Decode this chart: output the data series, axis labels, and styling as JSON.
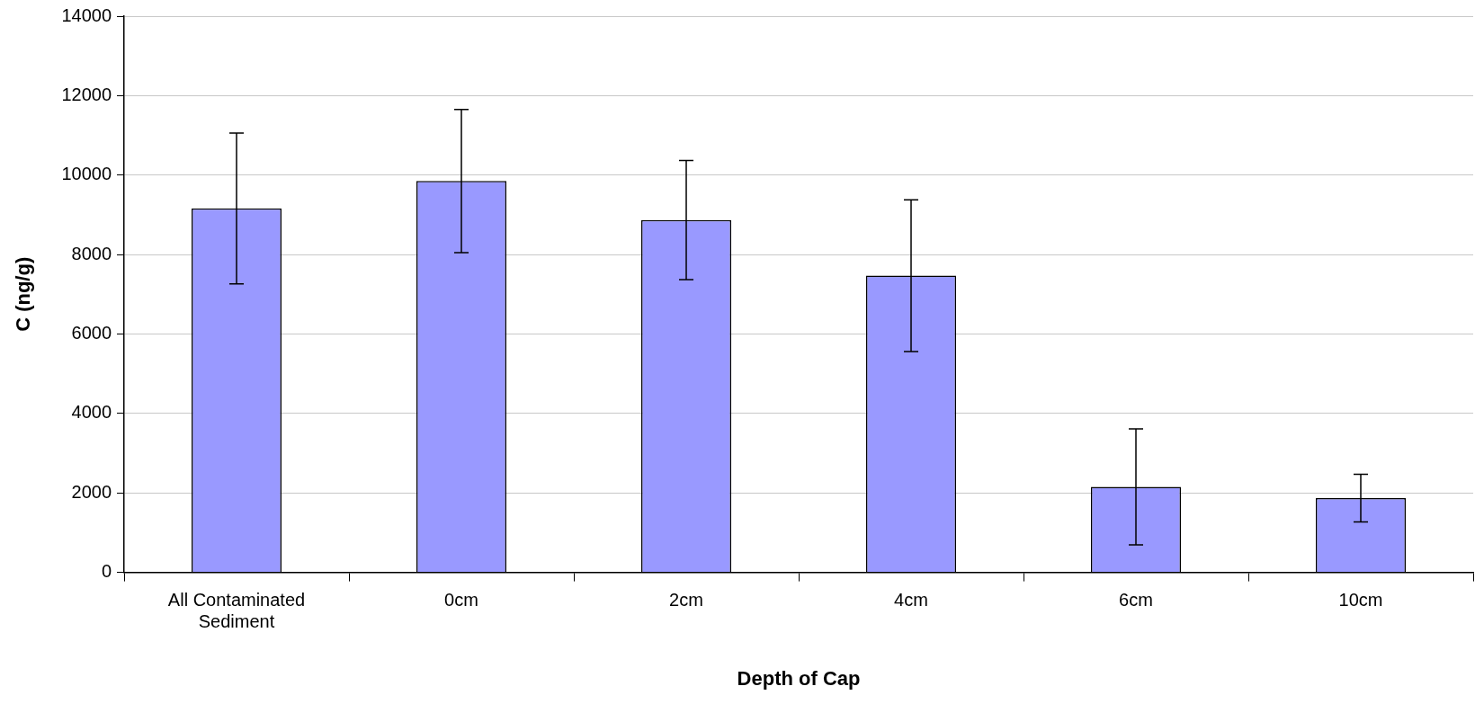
{
  "chart_data": {
    "type": "bar",
    "xlabel": "Depth of Cap",
    "ylabel": "C (ng/g)",
    "categories": [
      [
        "All Contaminated",
        "Sediment"
      ],
      "0cm",
      "2cm",
      "4cm",
      "6cm",
      "10cm"
    ],
    "values": [
      9160,
      9850,
      8870,
      7470,
      2150,
      1870
    ],
    "errors": [
      1900,
      1800,
      1500,
      1910,
      1460,
      600
    ],
    "color": "#9999ff",
    "ylim": [
      0,
      14000
    ],
    "yticks": [
      0,
      2000,
      4000,
      6000,
      8000,
      10000,
      12000,
      14000
    ],
    "grid": "y",
    "legend": false
  }
}
